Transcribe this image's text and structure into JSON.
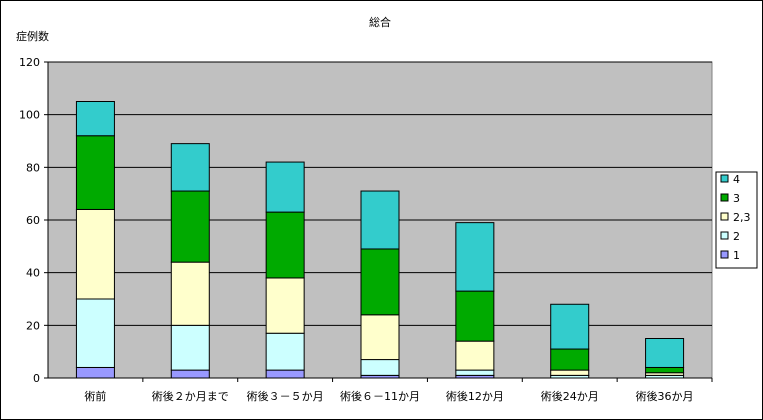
{
  "chart_data": {
    "type": "bar",
    "stacked": true,
    "title": "総合",
    "ylabel": "症例数",
    "xlabel": "",
    "ylim": [
      0,
      120
    ],
    "yticks": [
      0,
      20,
      40,
      60,
      80,
      100,
      120
    ],
    "grid": true,
    "legend_position": "right",
    "plot_background": "#c0c0c0",
    "categories": [
      "術前",
      "術後２か月まで",
      "術後３－５か月",
      "術後６－11か月",
      "術後12か月",
      "術後24か月",
      "術後36か月"
    ],
    "series": [
      {
        "name": "1",
        "color": "#9999ff",
        "values": [
          4,
          3,
          3,
          1,
          1,
          0,
          0
        ]
      },
      {
        "name": "2",
        "color": "#ccffff",
        "values": [
          26,
          17,
          14,
          6,
          2,
          1,
          1
        ]
      },
      {
        "name": "2,3",
        "color": "#ffffcc",
        "values": [
          34,
          24,
          21,
          17,
          11,
          2,
          1
        ]
      },
      {
        "name": "3",
        "color": "#00aa00",
        "values": [
          28,
          27,
          25,
          25,
          19,
          8,
          2
        ]
      },
      {
        "name": "4",
        "color": "#33cccc",
        "values": [
          13,
          18,
          19,
          22,
          26,
          17,
          11
        ]
      }
    ]
  }
}
